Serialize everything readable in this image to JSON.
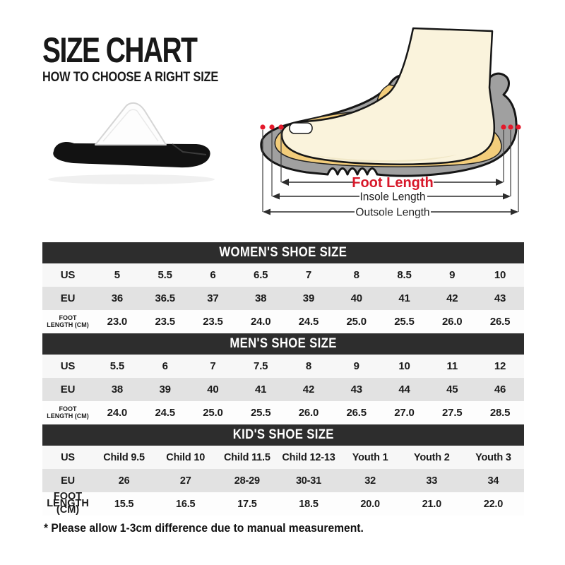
{
  "header": {
    "title": "SIZE CHART",
    "subtitle": "HOW TO CHOOSE A RIGHT SIZE"
  },
  "diagram": {
    "foot_length_label": "Foot Length",
    "insole_length_label": "Insole Length",
    "outsole_length_label": "Outsole Length"
  },
  "footnote": "* Please allow 1-3cm difference due to manual measurement.",
  "colors": {
    "accent_red": "#d7182a",
    "marker_red": "#e4192b",
    "header_bar": "#2d2d2d",
    "row_light": "#f7f7f7",
    "row_gray": "#e2e2e2",
    "row_white": "#fdfdfd",
    "shoe_gray": "#a0a0a0",
    "foot_cream": "#faf3dc",
    "insole_yellow": "#f3cd7b",
    "sole_black": "#111111"
  },
  "chart_data": [
    {
      "type": "table",
      "id": "womens",
      "title": "WOMEN'S SHOE SIZE",
      "row_headers": [
        "US",
        "EU",
        "FOOT\nLENGTH (CM)"
      ],
      "rows": [
        [
          "5",
          "5.5",
          "6",
          "6.5",
          "7",
          "8",
          "8.5",
          "9",
          "10"
        ],
        [
          "36",
          "36.5",
          "37",
          "38",
          "39",
          "40",
          "41",
          "42",
          "43"
        ],
        [
          "23.0",
          "23.5",
          "23.5",
          "24.0",
          "24.5",
          "25.0",
          "25.5",
          "26.0",
          "26.5"
        ]
      ]
    },
    {
      "type": "table",
      "id": "mens",
      "title": "MEN'S SHOE SIZE",
      "row_headers": [
        "US",
        "EU",
        "FOOT\nLENGTH (CM)"
      ],
      "rows": [
        [
          "5.5",
          "6",
          "7",
          "7.5",
          "8",
          "9",
          "10",
          "11",
          "12"
        ],
        [
          "38",
          "39",
          "40",
          "41",
          "42",
          "43",
          "44",
          "45",
          "46"
        ],
        [
          "24.0",
          "24.5",
          "25.0",
          "25.5",
          "26.0",
          "26.5",
          "27.0",
          "27.5",
          "28.5"
        ]
      ]
    },
    {
      "type": "table",
      "id": "kids",
      "title": "KID'S SHOE SIZE",
      "row_headers": [
        "US",
        "EU",
        "FOOT\nLENGTH (CM)"
      ],
      "rows": [
        [
          "Child 9.5",
          "Child 10",
          "Child 11.5",
          "Child 12-13",
          "Youth 1",
          "Youth 2",
          "Youth 3"
        ],
        [
          "26",
          "27",
          "28-29",
          "30-31",
          "32",
          "33",
          "34"
        ],
        [
          "15.5",
          "16.5",
          "17.5",
          "18.5",
          "20.0",
          "21.0",
          "22.0"
        ]
      ]
    }
  ]
}
